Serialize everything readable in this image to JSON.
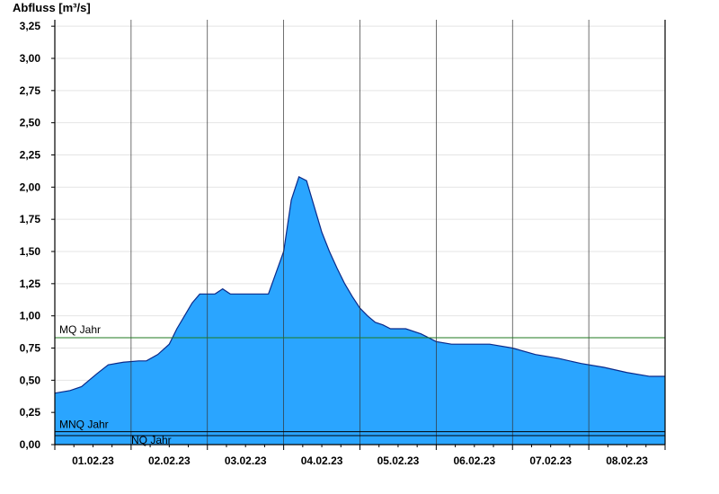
{
  "chart_data": {
    "type": "area",
    "ylabel": "Abfluss [m³/s]",
    "xlabel": "",
    "ylim": [
      0,
      3.3
    ],
    "yticks": [
      0,
      0.25,
      0.5,
      0.75,
      1.0,
      1.25,
      1.5,
      1.75,
      2.0,
      2.25,
      2.5,
      2.75,
      3.0,
      3.25
    ],
    "ytick_labels": [
      "0,00",
      "0,25",
      "0,50",
      "0,75",
      "1,00",
      "1,25",
      "1,50",
      "1,75",
      "2,00",
      "2,25",
      "2,50",
      "2,75",
      "3,00",
      "3,25"
    ],
    "xlim_days": [
      0,
      8
    ],
    "xticks": [
      "01.02.23",
      "02.02.23",
      "03.02.23",
      "04.02.23",
      "05.02.23",
      "06.02.23",
      "07.02.23",
      "08.02.23"
    ],
    "grid": true,
    "series": [
      {
        "color": "#2aa5ff",
        "x": [
          0.0,
          0.2,
          0.35,
          0.45,
          0.55,
          0.7,
          0.9,
          1.1,
          1.2,
          1.35,
          1.5,
          1.6,
          1.7,
          1.8,
          1.9,
          2.0,
          2.05,
          2.1,
          2.2,
          2.3,
          2.4,
          2.6,
          2.7,
          2.8,
          3.0,
          3.1,
          3.2,
          3.3,
          3.4,
          3.5,
          3.6,
          3.7,
          3.8,
          3.9,
          4.0,
          4.1,
          4.2,
          4.3,
          4.4,
          4.6,
          4.8,
          5.0,
          5.2,
          5.4,
          5.7,
          6.0,
          6.3,
          6.6,
          6.9,
          7.2,
          7.5,
          7.8,
          8.0
        ],
        "y": [
          0.4,
          0.42,
          0.45,
          0.5,
          0.55,
          0.62,
          0.64,
          0.65,
          0.65,
          0.7,
          0.78,
          0.9,
          1.0,
          1.1,
          1.17,
          1.17,
          1.17,
          1.17,
          1.21,
          1.17,
          1.17,
          1.17,
          1.17,
          1.17,
          1.5,
          1.9,
          2.08,
          2.05,
          1.85,
          1.65,
          1.5,
          1.37,
          1.25,
          1.15,
          1.06,
          1.0,
          0.95,
          0.93,
          0.9,
          0.9,
          0.86,
          0.8,
          0.78,
          0.78,
          0.78,
          0.75,
          0.7,
          0.67,
          0.63,
          0.6,
          0.56,
          0.53,
          0.53
        ]
      }
    ],
    "reference_lines": [
      {
        "label": "MQ Jahr",
        "value": 0.83,
        "color": "#1f7a1f"
      },
      {
        "label": "MNQ Jahr",
        "value": 0.1,
        "color": "#000000"
      },
      {
        "label": "NQ Jahr",
        "value": 0.07,
        "color": "#000000"
      }
    ]
  }
}
